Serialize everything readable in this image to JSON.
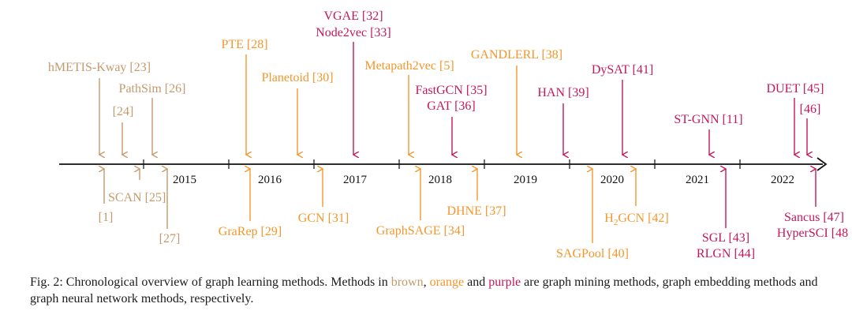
{
  "colors": {
    "brown": "#c49a6c",
    "orange": "#f5962a",
    "purple": "#c2185b",
    "axis": "#111111",
    "year_text": "#111111"
  },
  "years": [
    "2015",
    "2016",
    "2017",
    "2018",
    "2019",
    "2020",
    "2021",
    "2022"
  ],
  "labels": {
    "hmetis": "hMETIS-Kway [23]",
    "pathsim": "PathSim [26]",
    "ref24": "[24]",
    "pte": "PTE [28]",
    "planetoid": "Planetoid [30]",
    "vgae": "VGAE [32]",
    "node2vec": "Node2vec [33]",
    "metapath2vec": "Metapath2vec [5]",
    "fastgcn": "FastGCN [35]",
    "gat": "GAT [36]",
    "gandlerl": "GANDLERL [38]",
    "han": "HAN [39]",
    "dysat": "DySAT [41]",
    "stgnn": "ST-GNN [11]",
    "duet": "DUET [45]",
    "ref46": "[46]",
    "scan": "SCAN [25]",
    "ref1": "[1]",
    "ref27": "[27]",
    "grarep": "GraRep [29]",
    "gcn": "GCN [31]",
    "graphsage": "GraphSAGE [34]",
    "dhne": "DHNE [37]",
    "sagpool": "SAGPool [40]",
    "h2gcn_h": "H",
    "h2gcn_sub": "2",
    "h2gcn_rest": "GCN [42]",
    "sgl": "SGL [43]",
    "rlgn": "RLGN [44]",
    "sancus": "Sancus [47]",
    "hypersci": "HyperSCI [48"
  },
  "caption": {
    "prefix": "Fig. 2: Chronological overview of graph learning methods. Methods in ",
    "brown": "brown",
    "comma": ", ",
    "orange": "orange",
    "and": " and ",
    "purple": "purple",
    "suffix": " are graph mining methods, graph embedding methods and graph neural network methods, respectively."
  }
}
